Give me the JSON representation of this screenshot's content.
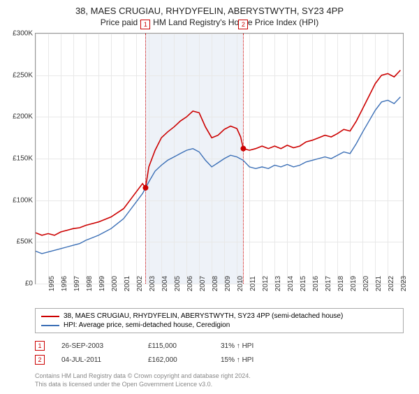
{
  "title": "38, MAES CRUGIAU, RHYDYFELIN, ABERYSTWYTH, SY23 4PP",
  "subtitle": "Price paid vs. HM Land Registry's House Price Index (HPI)",
  "chart": {
    "type": "line",
    "xlim": [
      1995,
      2024.2
    ],
    "ylim": [
      0,
      300000
    ],
    "ytick_step": 50000,
    "yticks": [
      0,
      50000,
      100000,
      150000,
      200000,
      250000,
      300000
    ],
    "ytick_labels": [
      "£0",
      "£50K",
      "£100K",
      "£150K",
      "£200K",
      "£250K",
      "£300K"
    ],
    "xticks": [
      1995,
      1996,
      1997,
      1998,
      1999,
      2000,
      2001,
      2002,
      2003,
      2004,
      2005,
      2006,
      2007,
      2008,
      2009,
      2010,
      2011,
      2012,
      2013,
      2014,
      2015,
      2016,
      2017,
      2018,
      2019,
      2020,
      2021,
      2022,
      2023
    ],
    "grid_color": "#e8e8e8",
    "background_color": "#ffffff",
    "band_color": "#eef2f8",
    "band_range": [
      2003.74,
      2011.51
    ],
    "series": [
      {
        "name": "38, MAES CRUGIAU, RHYDYFELIN, ABERYSTWYTH, SY23 4PP (semi-detached house)",
        "color": "#cc0000",
        "width": 1.6,
        "points": [
          [
            1995,
            61000
          ],
          [
            1995.5,
            58000
          ],
          [
            1996,
            60000
          ],
          [
            1996.5,
            58000
          ],
          [
            1997,
            62000
          ],
          [
            1997.5,
            64000
          ],
          [
            1998,
            66000
          ],
          [
            1998.5,
            67000
          ],
          [
            1999,
            70000
          ],
          [
            1999.5,
            72000
          ],
          [
            2000,
            74000
          ],
          [
            2000.5,
            77000
          ],
          [
            2001,
            80000
          ],
          [
            2001.5,
            85000
          ],
          [
            2002,
            90000
          ],
          [
            2002.5,
            100000
          ],
          [
            2003,
            110000
          ],
          [
            2003.5,
            120000
          ],
          [
            2003.74,
            115000
          ],
          [
            2004,
            140000
          ],
          [
            2004.5,
            160000
          ],
          [
            2005,
            175000
          ],
          [
            2005.5,
            182000
          ],
          [
            2006,
            188000
          ],
          [
            2006.5,
            195000
          ],
          [
            2007,
            200000
          ],
          [
            2007.5,
            207000
          ],
          [
            2008,
            205000
          ],
          [
            2008.5,
            188000
          ],
          [
            2009,
            175000
          ],
          [
            2009.5,
            178000
          ],
          [
            2010,
            185000
          ],
          [
            2010.5,
            189000
          ],
          [
            2011,
            186000
          ],
          [
            2011.3,
            176000
          ],
          [
            2011.51,
            162000
          ],
          [
            2012,
            160000
          ],
          [
            2012.5,
            162000
          ],
          [
            2013,
            165000
          ],
          [
            2013.5,
            162000
          ],
          [
            2014,
            165000
          ],
          [
            2014.5,
            162000
          ],
          [
            2015,
            166000
          ],
          [
            2015.5,
            163000
          ],
          [
            2016,
            165000
          ],
          [
            2016.5,
            170000
          ],
          [
            2017,
            172000
          ],
          [
            2017.5,
            175000
          ],
          [
            2018,
            178000
          ],
          [
            2018.5,
            176000
          ],
          [
            2019,
            180000
          ],
          [
            2019.5,
            185000
          ],
          [
            2020,
            183000
          ],
          [
            2020.5,
            195000
          ],
          [
            2021,
            210000
          ],
          [
            2021.5,
            225000
          ],
          [
            2022,
            240000
          ],
          [
            2022.5,
            250000
          ],
          [
            2023,
            252000
          ],
          [
            2023.5,
            248000
          ],
          [
            2024,
            256000
          ]
        ]
      },
      {
        "name": "HPI: Average price, semi-detached house, Ceredigion",
        "color": "#3b6fb6",
        "width": 1.4,
        "points": [
          [
            1995,
            39000
          ],
          [
            1995.5,
            36000
          ],
          [
            1996,
            38000
          ],
          [
            1996.5,
            40000
          ],
          [
            1997,
            42000
          ],
          [
            1997.5,
            44000
          ],
          [
            1998,
            46000
          ],
          [
            1998.5,
            48000
          ],
          [
            1999,
            52000
          ],
          [
            1999.5,
            55000
          ],
          [
            2000,
            58000
          ],
          [
            2000.5,
            62000
          ],
          [
            2001,
            66000
          ],
          [
            2001.5,
            72000
          ],
          [
            2002,
            78000
          ],
          [
            2002.5,
            88000
          ],
          [
            2003,
            98000
          ],
          [
            2003.5,
            108000
          ],
          [
            2004,
            122000
          ],
          [
            2004.5,
            135000
          ],
          [
            2005,
            142000
          ],
          [
            2005.5,
            148000
          ],
          [
            2006,
            152000
          ],
          [
            2006.5,
            156000
          ],
          [
            2007,
            160000
          ],
          [
            2007.5,
            162000
          ],
          [
            2008,
            158000
          ],
          [
            2008.5,
            148000
          ],
          [
            2009,
            140000
          ],
          [
            2009.5,
            145000
          ],
          [
            2010,
            150000
          ],
          [
            2010.5,
            154000
          ],
          [
            2011,
            152000
          ],
          [
            2011.5,
            148000
          ],
          [
            2012,
            140000
          ],
          [
            2012.5,
            138000
          ],
          [
            2013,
            140000
          ],
          [
            2013.5,
            138000
          ],
          [
            2014,
            142000
          ],
          [
            2014.5,
            140000
          ],
          [
            2015,
            143000
          ],
          [
            2015.5,
            140000
          ],
          [
            2016,
            142000
          ],
          [
            2016.5,
            146000
          ],
          [
            2017,
            148000
          ],
          [
            2017.5,
            150000
          ],
          [
            2018,
            152000
          ],
          [
            2018.5,
            150000
          ],
          [
            2019,
            154000
          ],
          [
            2019.5,
            158000
          ],
          [
            2020,
            156000
          ],
          [
            2020.5,
            168000
          ],
          [
            2021,
            182000
          ],
          [
            2021.5,
            195000
          ],
          [
            2022,
            208000
          ],
          [
            2022.5,
            218000
          ],
          [
            2023,
            220000
          ],
          [
            2023.5,
            216000
          ],
          [
            2024,
            224000
          ]
        ]
      }
    ],
    "markers": [
      {
        "x": 2003.74,
        "y": 115000,
        "color": "#cc0000",
        "r": 4
      },
      {
        "x": 2011.51,
        "y": 162000,
        "color": "#cc0000",
        "r": 4
      }
    ],
    "events": [
      {
        "n": "1",
        "x": 2003.74,
        "color": "#cc0000"
      },
      {
        "n": "2",
        "x": 2011.51,
        "color": "#cc0000"
      }
    ]
  },
  "legend": [
    {
      "color": "#cc0000",
      "label": "38, MAES CRUGIAU, RHYDYFELIN, ABERYSTWYTH, SY23 4PP (semi-detached house)"
    },
    {
      "color": "#3b6fb6",
      "label": "HPI: Average price, semi-detached house, Ceredigion"
    }
  ],
  "events_table": [
    {
      "n": "1",
      "color": "#cc0000",
      "date": "26-SEP-2003",
      "price": "£115,000",
      "delta": "31% ↑ HPI"
    },
    {
      "n": "2",
      "color": "#cc0000",
      "date": "04-JUL-2011",
      "price": "£162,000",
      "delta": "15% ↑ HPI"
    }
  ],
  "attribution": {
    "line1": "Contains HM Land Registry data © Crown copyright and database right 2024.",
    "line2": "This data is licensed under the Open Government Licence v3.0."
  }
}
